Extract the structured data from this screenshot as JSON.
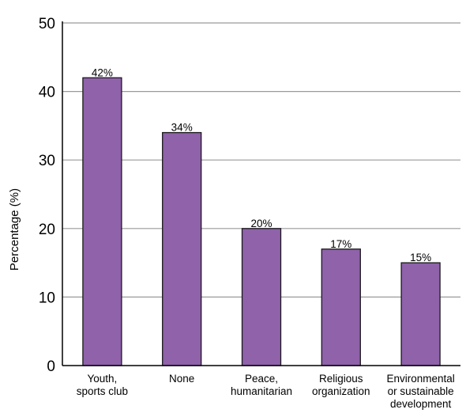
{
  "chart_data": {
    "type": "bar",
    "title": "",
    "xlabel": "",
    "ylabel": "Percentage (%)",
    "ylim": [
      0,
      50
    ],
    "yticks": [
      0,
      10,
      20,
      30,
      40,
      50
    ],
    "grid": true,
    "categories": [
      [
        "Youth,",
        "sports club"
      ],
      [
        "None"
      ],
      [
        "Peace,",
        "humanitarian"
      ],
      [
        "Religious",
        "organization"
      ],
      [
        "Environmental",
        "or sustainable",
        "development"
      ]
    ],
    "values": [
      42,
      34,
      20,
      17,
      15
    ],
    "data_labels": [
      "42%",
      "34%",
      "20%",
      "17%",
      "15%"
    ]
  },
  "colors": {
    "bar_fill": "#8f62aa",
    "bar_stroke": "#1a1a1a",
    "grid": "#9a9a9a",
    "axis": "#000000"
  }
}
